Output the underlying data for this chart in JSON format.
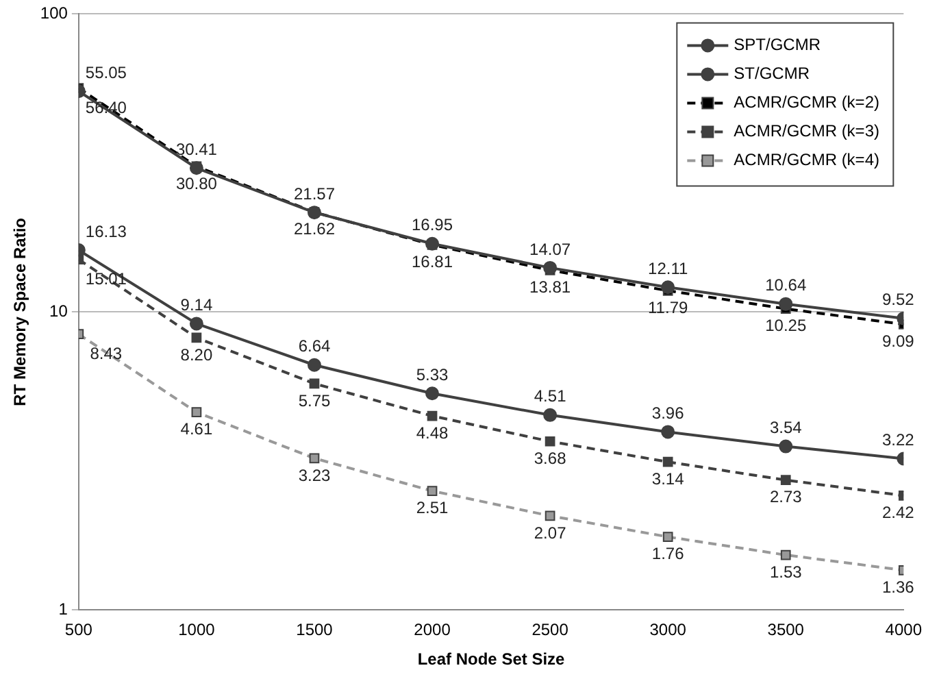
{
  "chart_data": {
    "type": "line",
    "xlabel": "Leaf Node Set Size",
    "ylabel": "RT Memory Space Ratio",
    "log": "y",
    "grid": "y",
    "legend": "top right",
    "x": [
      500,
      1000,
      1500,
      2000,
      2500,
      3000,
      3500,
      4000
    ],
    "xlim": [
      500,
      4000
    ],
    "xticks": [
      500,
      1000,
      1500,
      2000,
      2500,
      3000,
      3500,
      4000
    ],
    "ylim": [
      1,
      100
    ],
    "yticks": [
      1,
      10,
      100
    ],
    "series": [
      {
        "name": "SPT/GCMR",
        "color": "#404040",
        "marker": "circle",
        "line_style": "solid",
        "values": [
          55.05,
          30.41,
          21.57,
          16.95,
          14.07,
          12.11,
          10.64,
          9.52
        ],
        "value_labels": [
          "55.05",
          "30.41",
          "21.57",
          "16.95",
          "14.07",
          "12.11",
          "10.64",
          "9.52"
        ]
      },
      {
        "name": "ST/GCMR",
        "color": "#404040",
        "marker": "circle",
        "line_style": "solid",
        "values": [
          16.13,
          9.14,
          6.64,
          5.33,
          4.51,
          3.96,
          3.54,
          3.22
        ],
        "value_labels": [
          "16.13",
          "9.14",
          "6.64",
          "5.33",
          "4.51",
          "3.96",
          "3.54",
          "3.22"
        ]
      },
      {
        "name": "ACMR/GCMR (k=2)",
        "color": "#000000",
        "marker": "square",
        "line_style": "dashed",
        "values": [
          56.4,
          30.8,
          21.62,
          16.81,
          13.81,
          11.79,
          10.25,
          9.09
        ],
        "value_labels": [
          "56.40",
          "30.80",
          "21.62",
          "16.81",
          "13.81",
          "11.79",
          "10.25",
          "9.09"
        ]
      },
      {
        "name": "ACMR/GCMR (k=3)",
        "color": "#404040",
        "marker": "square",
        "line_style": "dashed",
        "values": [
          15.01,
          8.2,
          5.75,
          4.48,
          3.68,
          3.14,
          2.73,
          2.42
        ],
        "value_labels": [
          "15.01",
          "8.20",
          "5.75",
          "4.48",
          "3.68",
          "3.14",
          "2.73",
          "2.42"
        ]
      },
      {
        "name": "ACMR/GCMR (k=4)",
        "color": "#999999",
        "marker": "square",
        "line_style": "dashed",
        "values": [
          8.43,
          4.61,
          3.23,
          2.51,
          2.07,
          1.76,
          1.53,
          1.36
        ],
        "value_labels": [
          "8.43",
          "4.61",
          "3.23",
          "2.51",
          "2.07",
          "1.76",
          "1.53",
          "1.36"
        ]
      }
    ]
  }
}
